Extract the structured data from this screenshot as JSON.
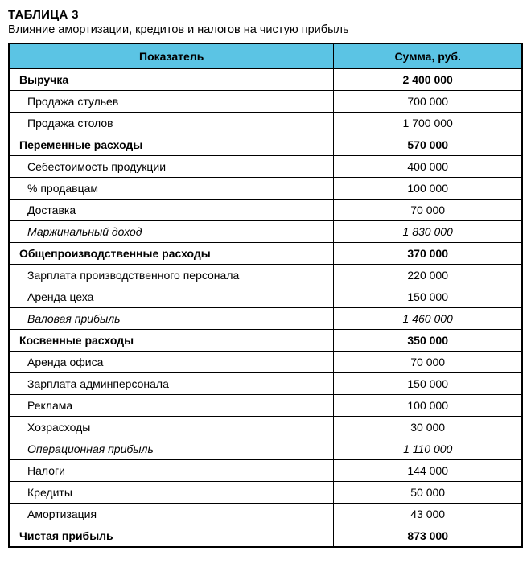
{
  "table_number": "ТАБЛИЦА 3",
  "caption": "Влияние амортизации, кредитов и налогов на чистую прибыль",
  "columns": [
    "Показатель",
    "Сумма, руб."
  ],
  "header_bg": "#5bc4e4",
  "border_color": "#000000",
  "text_color": "#000000",
  "rows": [
    {
      "label": "Выручка",
      "value": "2 400 000",
      "style": "bold",
      "indent": false
    },
    {
      "label": "Продажа стульев",
      "value": "700 000",
      "style": "normal",
      "indent": true
    },
    {
      "label": "Продажа столов",
      "value": "1 700 000",
      "style": "normal",
      "indent": true
    },
    {
      "label": "Переменные расходы",
      "value": "570 000",
      "style": "bold",
      "indent": false
    },
    {
      "label": "Себестоимость продукции",
      "value": "400 000",
      "style": "normal",
      "indent": true
    },
    {
      "label": "% продавцам",
      "value": "100 000",
      "style": "normal",
      "indent": true
    },
    {
      "label": "Доставка",
      "value": "70 000",
      "style": "normal",
      "indent": true
    },
    {
      "label": "Маржинальный доход",
      "value": "1 830 000",
      "style": "italic",
      "indent": true
    },
    {
      "label": "Общепроизводственные расходы",
      "value": "370 000",
      "style": "bold",
      "indent": false
    },
    {
      "label": "Зарплата производственного персонала",
      "value": "220 000",
      "style": "normal",
      "indent": true
    },
    {
      "label": "Аренда цеха",
      "value": "150 000",
      "style": "normal",
      "indent": true
    },
    {
      "label": "Валовая прибыль",
      "value": "1 460 000",
      "style": "italic",
      "indent": true
    },
    {
      "label": "Косвенные расходы",
      "value": "350 000",
      "style": "bold",
      "indent": false
    },
    {
      "label": "Аренда офиса",
      "value": "70 000",
      "style": "normal",
      "indent": true
    },
    {
      "label": "Зарплата админперсонала",
      "value": "150 000",
      "style": "normal",
      "indent": true
    },
    {
      "label": "Реклама",
      "value": "100 000",
      "style": "normal",
      "indent": true
    },
    {
      "label": "Хозрасходы",
      "value": "30 000",
      "style": "normal",
      "indent": true
    },
    {
      "label": "Операционная прибыль",
      "value": "1 110 000",
      "style": "italic",
      "indent": true
    },
    {
      "label": "Налоги",
      "value": "144 000",
      "style": "normal",
      "indent": true
    },
    {
      "label": "Кредиты",
      "value": "50 000",
      "style": "normal",
      "indent": true
    },
    {
      "label": "Амортизация",
      "value": "43 000",
      "style": "normal",
      "indent": true
    },
    {
      "label": "Чистая прибыль",
      "value": "873 000",
      "style": "bold",
      "indent": false
    }
  ]
}
